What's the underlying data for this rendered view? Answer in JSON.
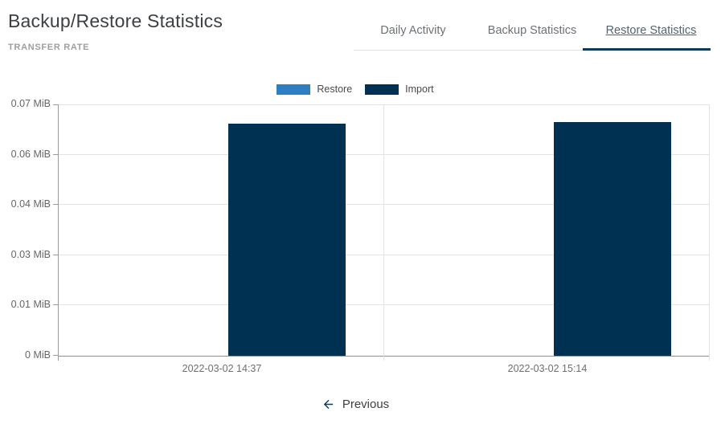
{
  "header": {
    "title": "Backup/Restore Statistics",
    "subtitle": "TRANSFER RATE"
  },
  "tabs": [
    {
      "label": "Daily Activity",
      "active": false
    },
    {
      "label": "Backup Statistics",
      "active": false
    },
    {
      "label": "Restore Statistics",
      "active": true
    }
  ],
  "pagination": {
    "previous_label": "Previous"
  },
  "colors": {
    "accent": "#0c3b5d",
    "restore_series": "#2d7fc1",
    "import_series": "#013152",
    "gridline": "#e3e3e3"
  },
  "chart_data": {
    "type": "bar",
    "title": "TRANSFER RATE",
    "unit": "MiB",
    "categories": [
      "2022-03-02 14:37",
      "2022-03-02 15:14"
    ],
    "series": [
      {
        "name": "Restore",
        "color": "#2d7fc1",
        "values": [
          0,
          0
        ]
      },
      {
        "name": "Import",
        "color": "#013152",
        "values": [
          0.0646,
          0.0651
        ]
      }
    ],
    "ylim": [
      0,
      0.07
    ],
    "ytick_labels": [
      "0 MiB",
      "0.01 MiB",
      "0.03 MiB",
      "0.04 MiB",
      "0.06 MiB",
      "0.07 MiB"
    ],
    "grid": true,
    "legend_position": "top"
  }
}
